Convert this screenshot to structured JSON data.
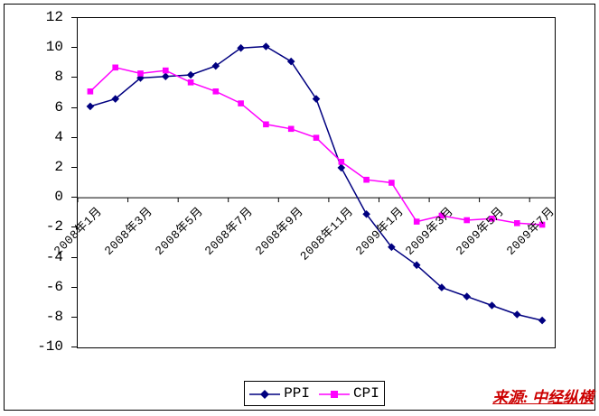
{
  "chart_data": {
    "type": "line",
    "title": "",
    "categories": [
      "2008年1月",
      "2008年2月",
      "2008年3月",
      "2008年4月",
      "2008年5月",
      "2008年6月",
      "2008年7月",
      "2008年8月",
      "2008年9月",
      "2008年10月",
      "2008年11月",
      "2008年12月",
      "2009年1月",
      "2009年2月",
      "2009年3月",
      "2009年4月",
      "2009年5月",
      "2009年6月",
      "2009年7月"
    ],
    "x_tick_labels": [
      "2008年1月",
      "2008年3月",
      "2008年5月",
      "2008年7月",
      "2008年9月",
      "2008年11月",
      "2009年1月",
      "2009年3月",
      "2009年5月",
      "2009年7月"
    ],
    "x_tick_category_indices": [
      0,
      2,
      4,
      6,
      8,
      10,
      12,
      14,
      16,
      18
    ],
    "y_ticks": [
      12,
      10,
      8,
      6,
      4,
      2,
      0,
      -2,
      -4,
      -6,
      -8,
      -10
    ],
    "ylim": [
      -10,
      12
    ],
    "ytick_step": 2,
    "grid": false,
    "legend_position": "bottom-center",
    "axis_color": "#000000",
    "series": [
      {
        "name": "PPI",
        "color": "#000080",
        "marker": "diamond",
        "values": [
          6.1,
          6.6,
          8.0,
          8.1,
          8.2,
          8.8,
          10.0,
          10.1,
          9.1,
          6.6,
          2.0,
          -1.1,
          -3.3,
          -4.5,
          -6.0,
          -6.6,
          -7.2,
          -7.8,
          -8.2
        ]
      },
      {
        "name": "CPI",
        "color": "#FF00FF",
        "marker": "square",
        "values": [
          7.1,
          8.7,
          8.3,
          8.5,
          7.7,
          7.1,
          6.3,
          4.9,
          4.6,
          4.0,
          2.4,
          1.2,
          1.0,
          -1.6,
          -1.2,
          -1.5,
          -1.4,
          -1.7,
          -1.8
        ]
      }
    ]
  },
  "source_note": {
    "text": "来源: 中经纵横",
    "color": "#CC0000"
  }
}
